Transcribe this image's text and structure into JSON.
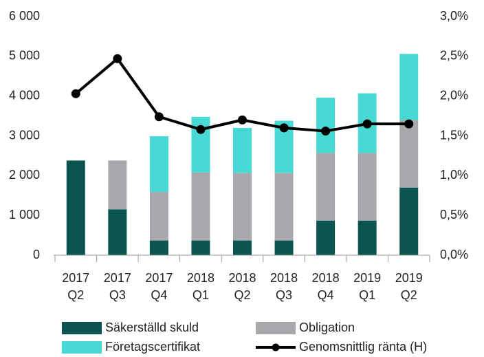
{
  "chart_data": {
    "type": "bar",
    "stacked": true,
    "categories": [
      "2017\nQ2",
      "2017\nQ3",
      "2017\nQ4",
      "2018\nQ1",
      "2018\nQ2",
      "2018\nQ3",
      "2018\nQ4",
      "2019\nQ1",
      "2019\nQ2"
    ],
    "series": [
      {
        "name": "Säkerställd skuld",
        "color": "#0b5450",
        "values": [
          2380,
          1150,
          370,
          370,
          370,
          370,
          870,
          870,
          1700
        ]
      },
      {
        "name": "Obligation",
        "color": "#a7a9ac",
        "values": [
          0,
          1230,
          1220,
          1710,
          1700,
          1700,
          1700,
          1700,
          1700
        ]
      },
      {
        "name": "Företagscertifikat",
        "color": "#48d9d4",
        "values": [
          0,
          0,
          1400,
          1400,
          1130,
          1310,
          1390,
          1500,
          1660
        ]
      },
      {
        "name": "Genomsnittlig ränta (H)",
        "color": "#000000",
        "type": "line",
        "axis": "y2",
        "values": [
          2.03,
          2.47,
          1.74,
          1.58,
          1.7,
          1.6,
          1.56,
          1.65,
          1.65
        ]
      }
    ],
    "ylim": [
      0,
      6000
    ],
    "yticks": [
      {
        "value": 0,
        "label": "0"
      },
      {
        "value": 1000,
        "label": "1 000"
      },
      {
        "value": 2000,
        "label": "2 000"
      },
      {
        "value": 3000,
        "label": "3 000"
      },
      {
        "value": 4000,
        "label": "4 000"
      },
      {
        "value": 5000,
        "label": "5 000"
      },
      {
        "value": 6000,
        "label": "6 000"
      }
    ],
    "y2lim": [
      0,
      3.0
    ],
    "y2ticks": [
      {
        "value": 0,
        "label": "0,0%"
      },
      {
        "value": 0.5,
        "label": "0,5%"
      },
      {
        "value": 1.0,
        "label": "1,0%"
      },
      {
        "value": 1.5,
        "label": "1,5%"
      },
      {
        "value": 2.0,
        "label": "2,0%"
      },
      {
        "value": 2.5,
        "label": "2,5%"
      },
      {
        "value": 3.0,
        "label": "3,0%"
      }
    ],
    "grid": false,
    "legend": "bottom"
  }
}
